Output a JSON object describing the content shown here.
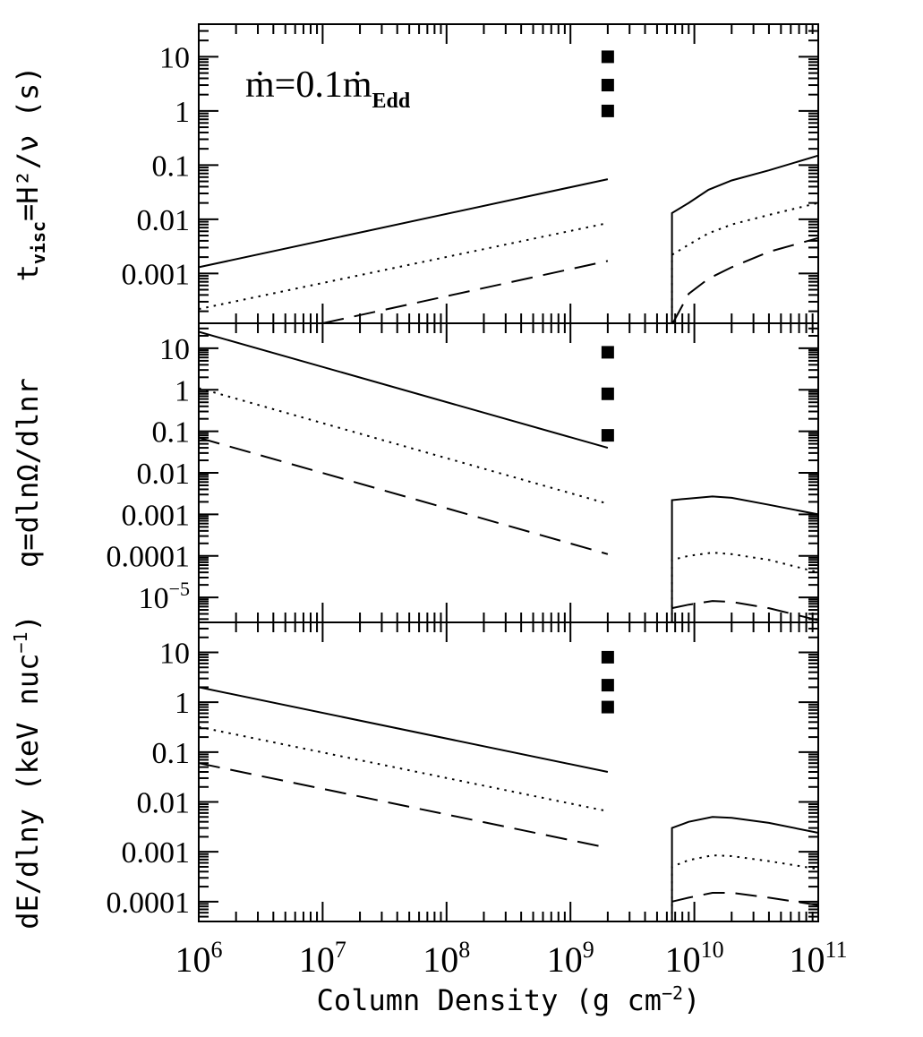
{
  "chart_data": [
    {
      "type": "line",
      "panel": "top",
      "ylabel": {
        "pre": "t",
        "sub": "visc",
        "post": "=H²/ν (s)"
      },
      "annotation": {
        "m": "ṁ",
        "eq": "=0.1",
        "m2": "ṁ",
        "sub": "Edd"
      },
      "x_scale": "log",
      "y_scale": "log",
      "xlim": [
        1000000,
        100000000000
      ],
      "ylim": [
        0.00012,
        40
      ],
      "y_tick_labels": [
        {
          "value": 10,
          "label": "10"
        },
        {
          "value": 1,
          "label": "1"
        },
        {
          "value": 0.1,
          "label": "0.1"
        },
        {
          "value": 0.01,
          "label": "0.01"
        },
        {
          "value": 0.001,
          "label": "0.001"
        }
      ],
      "markers": [
        10,
        3,
        1
      ],
      "marker_x": 2000000000,
      "series": [
        {
          "style": "solid",
          "segments": [
            {
              "x": [
                1000000,
                2000000000
              ],
              "y": [
                0.0013,
                0.055
              ]
            },
            {
              "x": [
                6600000000,
                6600000000,
                9000000000,
                13000000000,
                20000000000,
                40000000000,
                100000000000
              ],
              "y": [
                0.00012,
                0.013,
                0.02,
                0.035,
                0.052,
                0.08,
                0.15
              ]
            }
          ]
        },
        {
          "style": "dotted",
          "segments": [
            {
              "x": [
                1000000,
                2000000000
              ],
              "y": [
                0.00022,
                0.0085
              ]
            },
            {
              "x": [
                6600000000,
                6600000000,
                9000000000,
                13000000000,
                20000000000,
                40000000000,
                100000000000
              ],
              "y": [
                0.00012,
                0.0022,
                0.0034,
                0.0055,
                0.008,
                0.012,
                0.02
              ]
            }
          ]
        },
        {
          "style": "dashed",
          "segments": [
            {
              "x": [
                10000000,
                2000000000
              ],
              "y": [
                0.00012,
                0.0017
              ]
            },
            {
              "x": [
                6700000000,
                9000000000,
                13000000000,
                20000000000,
                40000000000,
                100000000000
              ],
              "y": [
                0.00012,
                0.00042,
                0.0008,
                0.0013,
                0.0025,
                0.0045
              ]
            }
          ]
        }
      ]
    },
    {
      "type": "line",
      "panel": "middle",
      "ylabel": {
        "text": "q=dlnΩ/dlnr"
      },
      "x_scale": "log",
      "y_scale": "log",
      "xlim": [
        1000000,
        100000000000
      ],
      "ylim": [
        2.5e-06,
        40
      ],
      "y_tick_labels": [
        {
          "value": 10,
          "label": "10"
        },
        {
          "value": 1,
          "label": "1"
        },
        {
          "value": 0.1,
          "label": "0.1"
        },
        {
          "value": 0.01,
          "label": "0.01"
        },
        {
          "value": 0.001,
          "label": "0.001"
        },
        {
          "value": 0.0001,
          "label": "0.0001"
        },
        {
          "value": 1e-05,
          "label": "10",
          "exp": "−5"
        }
      ],
      "markers": [
        8,
        0.8,
        0.08
      ],
      "marker_x": 2000000000,
      "series": [
        {
          "style": "solid",
          "segments": [
            {
              "x": [
                1000000,
                2000000000
              ],
              "y": [
                25,
                0.04
              ]
            },
            {
              "x": [
                6600000000,
                6600000000,
                9000000000,
                14000000000,
                20000000000,
                40000000000,
                100000000000
              ],
              "y": [
                2.5e-06,
                0.0022,
                0.0024,
                0.0027,
                0.0025,
                0.0017,
                0.001
              ]
            }
          ]
        },
        {
          "style": "dotted",
          "segments": [
            {
              "x": [
                1000000,
                2000000000
              ],
              "y": [
                1.1,
                0.0018
              ]
            },
            {
              "x": [
                6600000000,
                6600000000,
                9000000000,
                14000000000,
                20000000000,
                40000000000,
                100000000000
              ],
              "y": [
                2.5e-06,
                8e-05,
                0.0001,
                0.00012,
                0.00011,
                8e-05,
                4e-05
              ]
            }
          ]
        },
        {
          "style": "dashed",
          "segments": [
            {
              "x": [
                1000000,
                2000000000
              ],
              "y": [
                0.07,
                0.00011
              ]
            },
            {
              "x": [
                6600000000,
                9000000000,
                14000000000,
                20000000000,
                40000000000,
                100000000000
              ],
              "y": [
                5.5e-06,
                6.7e-06,
                8.2e-06,
                7.8e-06,
                5.5e-06,
                2.8e-06
              ]
            }
          ]
        }
      ]
    },
    {
      "type": "line",
      "panel": "bottom",
      "ylabel": {
        "text": "dE/dlny (keV nuc",
        "exp": "−1",
        "close": ")"
      },
      "xlabel": {
        "text": "Column Density (g cm",
        "exp": "−2",
        "close": ")"
      },
      "x_scale": "log",
      "y_scale": "log",
      "xlim": [
        1000000,
        100000000000
      ],
      "ylim": [
        4e-05,
        40
      ],
      "x_tick_labels": [
        {
          "value": 1000000,
          "base": "10",
          "exp": "6"
        },
        {
          "value": 10000000,
          "base": "10",
          "exp": "7"
        },
        {
          "value": 100000000,
          "base": "10",
          "exp": "8"
        },
        {
          "value": 1000000000,
          "base": "10",
          "exp": "9"
        },
        {
          "value": 10000000000,
          "base": "10",
          "exp": "10"
        },
        {
          "value": 100000000000,
          "base": "10",
          "exp": "11"
        }
      ],
      "y_tick_labels": [
        {
          "value": 10,
          "label": "10"
        },
        {
          "value": 1,
          "label": "1"
        },
        {
          "value": 0.1,
          "label": "0.1"
        },
        {
          "value": 0.01,
          "label": "0.01"
        },
        {
          "value": 0.001,
          "label": "0.001"
        },
        {
          "value": 0.0001,
          "label": "0.0001"
        }
      ],
      "markers": [
        8,
        2.2,
        0.8
      ],
      "marker_x": 2000000000,
      "series": [
        {
          "style": "solid",
          "segments": [
            {
              "x": [
                1000000,
                2000000000
              ],
              "y": [
                2,
                0.04
              ]
            },
            {
              "x": [
                6600000000,
                6600000000,
                9000000000,
                14000000000,
                20000000000,
                40000000000,
                100000000000
              ],
              "y": [
                4e-05,
                0.003,
                0.004,
                0.005,
                0.0048,
                0.0038,
                0.0024
              ]
            }
          ]
        },
        {
          "style": "dotted",
          "segments": [
            {
              "x": [
                1000000,
                2000000000
              ],
              "y": [
                0.32,
                0.0065
              ]
            },
            {
              "x": [
                6600000000,
                6600000000,
                9000000000,
                14000000000,
                20000000000,
                40000000000,
                100000000000
              ],
              "y": [
                4e-05,
                0.0005,
                0.00068,
                0.00085,
                0.00082,
                0.00065,
                0.00045
              ]
            }
          ]
        },
        {
          "style": "dashed",
          "segments": [
            {
              "x": [
                1000000,
                2000000000
              ],
              "y": [
                0.06,
                0.0012
              ]
            },
            {
              "x": [
                6600000000,
                9000000000,
                14000000000,
                20000000000,
                40000000000,
                100000000000
              ],
              "y": [
                0.0001,
                0.00012,
                0.00015,
                0.00015,
                0.00012,
                8.5e-05
              ]
            }
          ]
        }
      ]
    }
  ]
}
